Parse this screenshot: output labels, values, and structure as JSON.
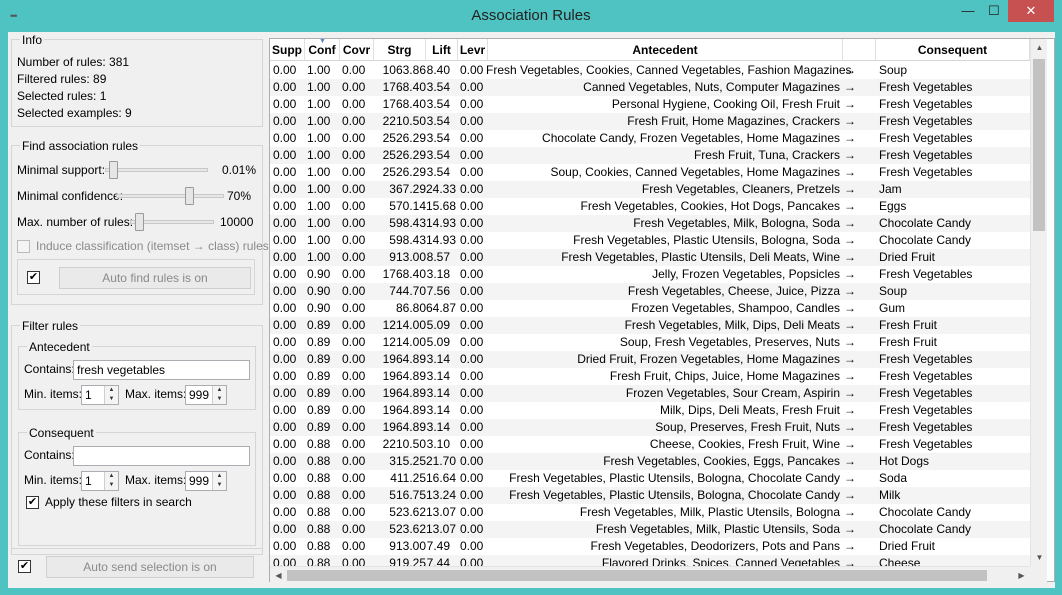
{
  "window": {
    "title": "Association Rules",
    "min_glyph": "—",
    "max_glyph": "☐",
    "close_glyph": "✕",
    "app_icon": "•••"
  },
  "info": {
    "title": "Info",
    "number_of_rules": "Number of rules: 381",
    "filtered_rules": "Filtered rules: 89",
    "selected_rules": "Selected rules: 1",
    "selected_examples": "Selected examples: 9"
  },
  "find": {
    "title": "Find association rules",
    "min_support_label": "Minimal support:",
    "min_support_value": "0.01%",
    "min_support_level": 0.03,
    "min_confidence_label": "Minimal confidence:",
    "min_confidence_value": "70%",
    "min_confidence_level": 0.7,
    "max_rules_label": "Max. number of rules:",
    "max_rules_value": "10000",
    "max_rules_level": 0.05,
    "induce_label": "Induce classification (itemset → class) rules",
    "auto_find_checked": "✔",
    "auto_find_label": "Auto find rules is on"
  },
  "filter": {
    "title": "Filter rules",
    "antecedent_title": "Antecedent",
    "contains_label": "Contains:",
    "antecedent_contains": "fresh vegetables",
    "min_items_label": "Min. items:",
    "max_items_label": "Max. items:",
    "ant_min_items": "1",
    "ant_max_items": "999",
    "consequent_title": "Consequent",
    "consequent_contains": "",
    "cons_min_items": "1",
    "cons_max_items": "999",
    "apply_checked": "✔",
    "apply_label": "Apply these filters in search"
  },
  "send": {
    "checked": "✔",
    "label": "Auto send selection is on"
  },
  "table": {
    "headers": {
      "supp": "Supp",
      "conf": "Conf",
      "covr": "Covr",
      "strg": "Strg",
      "lift": "Lift",
      "levr": "Levr",
      "antecedent": "Antecedent",
      "consequent": "Consequent"
    },
    "rows": [
      [
        "0.00",
        "1.00",
        "0.00",
        "1063.86",
        "8.40",
        "0.00",
        "Fresh Vegetables, Cookies, Canned Vegetables, Fashion Magazines",
        "→",
        "Soup"
      ],
      [
        "0.00",
        "1.00",
        "0.00",
        "1768.40",
        "3.54",
        "0.00",
        "Canned Vegetables, Nuts, Computer Magazines",
        "→",
        "Fresh Vegetables"
      ],
      [
        "0.00",
        "1.00",
        "0.00",
        "1768.40",
        "3.54",
        "0.00",
        "Personal Hygiene, Cooking Oil, Fresh Fruit",
        "→",
        "Fresh Vegetables"
      ],
      [
        "0.00",
        "1.00",
        "0.00",
        "2210.50",
        "3.54",
        "0.00",
        "Fresh Fruit, Home Magazines, Crackers",
        "→",
        "Fresh Vegetables"
      ],
      [
        "0.00",
        "1.00",
        "0.00",
        "2526.29",
        "3.54",
        "0.00",
        "Chocolate Candy, Frozen Vegetables, Home Magazines",
        "→",
        "Fresh Vegetables"
      ],
      [
        "0.00",
        "1.00",
        "0.00",
        "2526.29",
        "3.54",
        "0.00",
        "Fresh Fruit, Tuna, Crackers",
        "→",
        "Fresh Vegetables"
      ],
      [
        "0.00",
        "1.00",
        "0.00",
        "2526.29",
        "3.54",
        "0.00",
        "Soup, Cookies, Canned Vegetables, Home Magazines",
        "→",
        "Fresh Vegetables"
      ],
      [
        "0.00",
        "1.00",
        "0.00",
        "367.29",
        "24.33",
        "0.00",
        "Fresh Vegetables, Cleaners, Pretzels",
        "→",
        "Jam"
      ],
      [
        "0.00",
        "1.00",
        "0.00",
        "570.14",
        "15.68",
        "0.00",
        "Fresh Vegetables, Cookies, Hot Dogs, Pancakes",
        "→",
        "Eggs"
      ],
      [
        "0.00",
        "1.00",
        "0.00",
        "598.43",
        "14.93",
        "0.00",
        "Fresh Vegetables, Milk, Bologna, Soda",
        "→",
        "Chocolate Candy"
      ],
      [
        "0.00",
        "1.00",
        "0.00",
        "598.43",
        "14.93",
        "0.00",
        "Fresh Vegetables, Plastic Utensils, Bologna, Soda",
        "→",
        "Chocolate Candy"
      ],
      [
        "0.00",
        "1.00",
        "0.00",
        "913.00",
        "8.57",
        "0.00",
        "Fresh Vegetables, Plastic Utensils, Deli Meats, Wine",
        "→",
        "Dried Fruit"
      ],
      [
        "0.00",
        "0.90",
        "0.00",
        "1768.40",
        "3.18",
        "0.00",
        "Jelly, Frozen Vegetables, Popsicles",
        "→",
        "Fresh Vegetables"
      ],
      [
        "0.00",
        "0.90",
        "0.00",
        "744.70",
        "7.56",
        "0.00",
        "Fresh Vegetables, Cheese, Juice, Pizza",
        "→",
        "Soup"
      ],
      [
        "0.00",
        "0.90",
        "0.00",
        "86.80",
        "64.87",
        "0.00",
        "Frozen Vegetables, Shampoo, Candles",
        "→",
        "Gum"
      ],
      [
        "0.00",
        "0.89",
        "0.00",
        "1214.00",
        "5.09",
        "0.00",
        "Fresh Vegetables, Milk, Dips, Deli Meats",
        "→",
        "Fresh Fruit"
      ],
      [
        "0.00",
        "0.89",
        "0.00",
        "1214.00",
        "5.09",
        "0.00",
        "Soup, Fresh Vegetables, Preserves, Nuts",
        "→",
        "Fresh Fruit"
      ],
      [
        "0.00",
        "0.89",
        "0.00",
        "1964.89",
        "3.14",
        "0.00",
        "Dried Fruit, Frozen Vegetables, Home Magazines",
        "→",
        "Fresh Vegetables"
      ],
      [
        "0.00",
        "0.89",
        "0.00",
        "1964.89",
        "3.14",
        "0.00",
        "Fresh Fruit, Chips, Juice, Home Magazines",
        "→",
        "Fresh Vegetables"
      ],
      [
        "0.00",
        "0.89",
        "0.00",
        "1964.89",
        "3.14",
        "0.00",
        "Frozen Vegetables, Sour Cream, Aspirin",
        "→",
        "Fresh Vegetables"
      ],
      [
        "0.00",
        "0.89",
        "0.00",
        "1964.89",
        "3.14",
        "0.00",
        "Milk, Dips, Deli Meats, Fresh Fruit",
        "→",
        "Fresh Vegetables"
      ],
      [
        "0.00",
        "0.89",
        "0.00",
        "1964.89",
        "3.14",
        "0.00",
        "Soup, Preserves, Fresh Fruit, Nuts",
        "→",
        "Fresh Vegetables"
      ],
      [
        "0.00",
        "0.88",
        "0.00",
        "2210.50",
        "3.10",
        "0.00",
        "Cheese, Cookies, Fresh Fruit, Wine",
        "→",
        "Fresh Vegetables"
      ],
      [
        "0.00",
        "0.88",
        "0.00",
        "315.25",
        "21.70",
        "0.00",
        "Fresh Vegetables, Cookies, Eggs, Pancakes",
        "→",
        "Hot Dogs"
      ],
      [
        "0.00",
        "0.88",
        "0.00",
        "411.25",
        "16.64",
        "0.00",
        "Fresh Vegetables, Plastic Utensils, Bologna, Chocolate Candy",
        "→",
        "Soda"
      ],
      [
        "0.00",
        "0.88",
        "0.00",
        "516.75",
        "13.24",
        "0.00",
        "Fresh Vegetables, Plastic Utensils, Bologna, Chocolate Candy",
        "→",
        "Milk"
      ],
      [
        "0.00",
        "0.88",
        "0.00",
        "523.62",
        "13.07",
        "0.00",
        "Fresh Vegetables, Milk, Plastic Utensils, Bologna",
        "→",
        "Chocolate Candy"
      ],
      [
        "0.00",
        "0.88",
        "0.00",
        "523.62",
        "13.07",
        "0.00",
        "Fresh Vegetables, Milk, Plastic Utensils, Soda",
        "→",
        "Chocolate Candy"
      ],
      [
        "0.00",
        "0.88",
        "0.00",
        "913.00",
        "7.49",
        "0.00",
        "Fresh Vegetables, Deodorizers, Pots and Pans",
        "→",
        "Dried Fruit"
      ],
      [
        "0.00",
        "0.88",
        "0.00",
        "919.25",
        "7.44",
        "0.00",
        "Flavored Drinks, Spices, Canned Vegetables",
        "→",
        "Cheese"
      ]
    ]
  }
}
